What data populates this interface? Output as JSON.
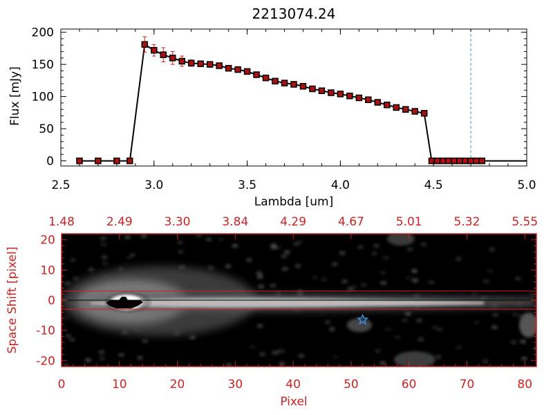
{
  "chart_data": [
    {
      "type": "line",
      "title": "2213074.24",
      "xlabel": "Lambda [um]",
      "ylabel": "Flux [mJy]",
      "xlim": [
        2.5,
        5.0
      ],
      "ylim": [
        -8,
        205
      ],
      "x_ticks": [
        "2.5",
        "3.0",
        "3.5",
        "4.0",
        "4.5",
        "5.0"
      ],
      "x_tick_values": [
        2.5,
        3.0,
        3.5,
        4.0,
        4.5,
        5.0
      ],
      "y_ticks": [
        "0",
        "50",
        "100",
        "150",
        "200"
      ],
      "y_tick_values": [
        0,
        50,
        100,
        150,
        200
      ],
      "grid": false,
      "line_color": "#000000",
      "marker_color": "#aa1111",
      "error_color": "#cc2222",
      "reference_line": {
        "x": 4.7,
        "color": "#33a0c8",
        "style": "dashed"
      },
      "series": [
        {
          "x": [
            2.6,
            2.7,
            2.8,
            2.87,
            2.95,
            3.0,
            3.05,
            3.1,
            3.15,
            3.2,
            3.25,
            3.3,
            3.35,
            3.4,
            3.45,
            3.5,
            3.55,
            3.6,
            3.65,
            3.7,
            3.75,
            3.8,
            3.85,
            3.9,
            3.95,
            4.0,
            4.05,
            4.1,
            4.15,
            4.2,
            4.25,
            4.3,
            4.35,
            4.4,
            4.45,
            4.49,
            4.52,
            4.55,
            4.58,
            4.61,
            4.64,
            4.67,
            4.7,
            4.73,
            4.76,
            4.8,
            4.85,
            4.9,
            4.95,
            5.0
          ],
          "y": [
            0,
            0,
            0,
            0,
            181,
            172,
            165,
            160,
            155,
            152,
            151,
            150,
            148,
            144,
            142,
            139,
            134,
            129,
            124,
            121,
            119,
            116,
            112,
            109,
            106,
            104,
            101,
            98,
            95,
            91,
            87,
            83,
            80,
            77,
            74,
            0,
            0,
            0,
            0,
            0,
            0,
            0,
            0,
            0,
            0,
            0,
            0,
            0,
            0,
            0
          ],
          "err": [
            0,
            0,
            0,
            0,
            12,
            9,
            11,
            10,
            8,
            5,
            4,
            3,
            2,
            2,
            2,
            2,
            2,
            2,
            2,
            2,
            2,
            2,
            2,
            2,
            2,
            2,
            2,
            2,
            2,
            2,
            2,
            2,
            2,
            2,
            2,
            0,
            0,
            0,
            0,
            0,
            0,
            0,
            0,
            0,
            0,
            0,
            0,
            0,
            0,
            0
          ],
          "markers_upto": 44
        }
      ]
    },
    {
      "type": "heatmap",
      "xlabel": "Pixel",
      "ylabel": "Space Shift [pixel]",
      "xlim": [
        0,
        82
      ],
      "ylim": [
        -22,
        22
      ],
      "x_ticks": [
        "0",
        "10",
        "20",
        "30",
        "40",
        "50",
        "60",
        "70",
        "80"
      ],
      "x_tick_values": [
        0,
        10,
        20,
        30,
        40,
        50,
        60,
        70,
        80
      ],
      "top_ticks": [
        "1.48",
        "2.49",
        "3.30",
        "3.84",
        "4.29",
        "4.67",
        "5.01",
        "5.32",
        "5.55"
      ],
      "y_ticks": [
        "20",
        "10",
        "0",
        "-10",
        "-20"
      ],
      "y_tick_values": [
        20,
        10,
        0,
        -10,
        -20
      ],
      "axis_color": "#cc2222",
      "aperture_lines": [
        3,
        -3
      ],
      "center_line": 0,
      "star_marker": {
        "x": 52,
        "y": -6.5,
        "color": "#3a8fe0"
      }
    }
  ]
}
